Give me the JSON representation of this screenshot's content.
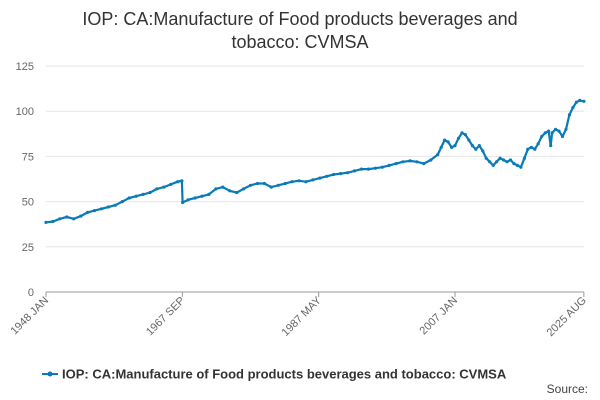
{
  "chart_data": {
    "type": "line",
    "title_lines": [
      "IOP: CA:Manufacture of Food products beverages and",
      "tobacco: CVMSA"
    ],
    "xlabel": "",
    "ylabel": "",
    "ylim": [
      0,
      125
    ],
    "y_ticks": [
      0,
      25,
      50,
      75,
      100,
      125
    ],
    "x_range": [
      1948.0,
      2025.6
    ],
    "x_ticks": [
      {
        "label": "1948 JAN",
        "x": 1948.0
      },
      {
        "label": "1967 SEP",
        "x": 1967.67
      },
      {
        "label": "1987 MAY",
        "x": 1987.33
      },
      {
        "label": "2007 JAN",
        "x": 2007.0
      },
      {
        "label": "2025 AUG",
        "x": 2025.58
      }
    ],
    "grid": true,
    "series": [
      {
        "name": "IOP: CA:Manufacture of Food products beverages and tobacco: CVMSA",
        "color": "#0a7ab8",
        "points": [
          [
            1948.0,
            38.5
          ],
          [
            1949.0,
            39
          ],
          [
            1950.0,
            40.5
          ],
          [
            1951.0,
            41.5
          ],
          [
            1952.0,
            40.5
          ],
          [
            1953.0,
            42
          ],
          [
            1954.0,
            44
          ],
          [
            1955.0,
            45
          ],
          [
            1956.0,
            46
          ],
          [
            1957.0,
            47
          ],
          [
            1958.0,
            48
          ],
          [
            1959.0,
            50
          ],
          [
            1960.0,
            52
          ],
          [
            1961.0,
            53
          ],
          [
            1962.0,
            54
          ],
          [
            1963.0,
            55
          ],
          [
            1964.0,
            57
          ],
          [
            1965.0,
            58
          ],
          [
            1966.0,
            59.5
          ],
          [
            1967.0,
            61
          ],
          [
            1967.6,
            61.5
          ],
          [
            1967.7,
            49.5
          ],
          [
            1968.5,
            51
          ],
          [
            1969.5,
            52
          ],
          [
            1970.5,
            53
          ],
          [
            1971.5,
            54
          ],
          [
            1972.5,
            57
          ],
          [
            1973.5,
            58
          ],
          [
            1974.5,
            56
          ],
          [
            1975.5,
            55
          ],
          [
            1976.5,
            57
          ],
          [
            1977.5,
            59
          ],
          [
            1978.5,
            60
          ],
          [
            1979.5,
            60
          ],
          [
            1980.5,
            58
          ],
          [
            1981.5,
            59
          ],
          [
            1982.5,
            60
          ],
          [
            1983.5,
            61
          ],
          [
            1984.5,
            61.5
          ],
          [
            1985.5,
            61
          ],
          [
            1986.5,
            62
          ],
          [
            1987.5,
            63
          ],
          [
            1988.5,
            64
          ],
          [
            1989.5,
            65
          ],
          [
            1990.5,
            65.5
          ],
          [
            1991.5,
            66
          ],
          [
            1992.5,
            67
          ],
          [
            1993.5,
            68
          ],
          [
            1994.5,
            68
          ],
          [
            1995.5,
            68.5
          ],
          [
            1996.5,
            69
          ],
          [
            1997.5,
            70
          ],
          [
            1998.5,
            71
          ],
          [
            1999.5,
            72
          ],
          [
            2000.5,
            72.5
          ],
          [
            2001.5,
            72
          ],
          [
            2002.5,
            71
          ],
          [
            2003.5,
            73
          ],
          [
            2004.5,
            76
          ],
          [
            2005.0,
            80
          ],
          [
            2005.5,
            84
          ],
          [
            2006.0,
            83
          ],
          [
            2006.5,
            80
          ],
          [
            2007.0,
            81
          ],
          [
            2007.5,
            85
          ],
          [
            2008.0,
            88
          ],
          [
            2008.5,
            87
          ],
          [
            2009.0,
            84
          ],
          [
            2009.5,
            81
          ],
          [
            2010.0,
            79
          ],
          [
            2010.5,
            81
          ],
          [
            2011.0,
            78
          ],
          [
            2011.5,
            74
          ],
          [
            2012.0,
            72
          ],
          [
            2012.5,
            70
          ],
          [
            2013.0,
            72
          ],
          [
            2013.5,
            74
          ],
          [
            2014.0,
            73
          ],
          [
            2014.5,
            72
          ],
          [
            2015.0,
            73
          ],
          [
            2015.5,
            71
          ],
          [
            2016.0,
            70
          ],
          [
            2016.5,
            69
          ],
          [
            2017.0,
            74
          ],
          [
            2017.5,
            79
          ],
          [
            2018.0,
            80
          ],
          [
            2018.5,
            79
          ],
          [
            2019.0,
            82
          ],
          [
            2019.5,
            86
          ],
          [
            2020.0,
            88
          ],
          [
            2020.5,
            89
          ],
          [
            2020.8,
            81
          ],
          [
            2021.0,
            88
          ],
          [
            2021.5,
            90
          ],
          [
            2022.0,
            89
          ],
          [
            2022.5,
            86
          ],
          [
            2023.0,
            90
          ],
          [
            2023.5,
            98
          ],
          [
            2024.0,
            102
          ],
          [
            2024.5,
            105
          ],
          [
            2025.0,
            106
          ],
          [
            2025.58,
            105.5
          ]
        ]
      }
    ]
  },
  "legend": {
    "label": "IOP: CA:Manufacture of Food products beverages and tobacco: CVMSA"
  },
  "source": {
    "label": "Source:"
  }
}
